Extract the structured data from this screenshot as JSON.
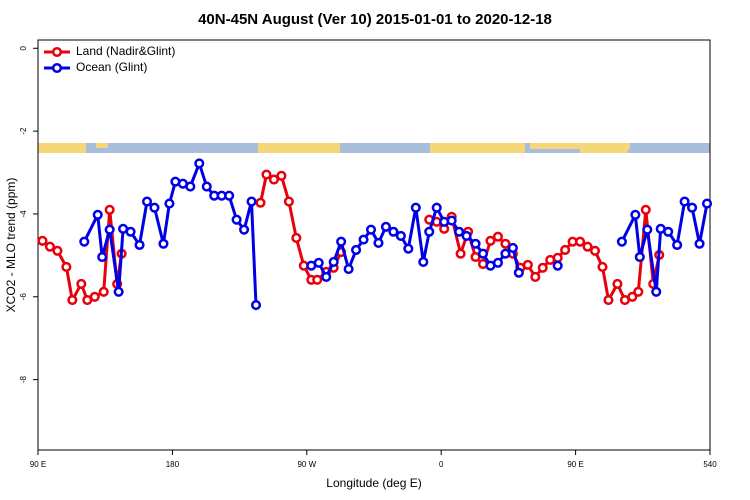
{
  "chart_data": {
    "type": "line",
    "title": "40N-45N August (Ver 10)   2015-01-01 to 2020-12-18",
    "x_label": "Longitude (deg E)",
    "y_label": "XCO2 - MLO trend (ppm)",
    "xlim": [
      90,
      540
    ],
    "ylim": [
      -9.7,
      0.2
    ],
    "xticks": [
      {
        "value": 90,
        "label": "90 E"
      },
      180,
      {
        "value": 270,
        "label": "90 W"
      },
      {
        "value": 360,
        "label": "0"
      },
      {
        "value": 450,
        "label": "90 E"
      },
      540
    ],
    "yticks": [
      0,
      -2,
      -4,
      -6,
      -8
    ],
    "legend": "top-left",
    "series": [
      {
        "name": "Land (Nadir&Glint)",
        "color": "#e8000b",
        "x": [
          93,
          98,
          103,
          109,
          113,
          119,
          123,
          128,
          134,
          138,
          143,
          146,
          null,
          239,
          243,
          248,
          253,
          258,
          263,
          268,
          273,
          277,
          283,
          288,
          293,
          null,
          352,
          357,
          362,
          367,
          373,
          378,
          383,
          388,
          393,
          398,
          403,
          408,
          413,
          418,
          423,
          428,
          433,
          438,
          443,
          448,
          453,
          458,
          463,
          468,
          472,
          478,
          483,
          488,
          492,
          497,
          502,
          506
        ],
        "values": [
          -4.65,
          -4.79,
          -4.89,
          -5.28,
          -6.08,
          -5.69,
          -6.08,
          -6.0,
          -5.88,
          -3.9,
          -5.69,
          -4.96,
          null,
          -3.73,
          -3.05,
          -3.17,
          -3.08,
          -3.7,
          -4.58,
          -5.25,
          -5.59,
          -5.59,
          -5.4,
          -5.3,
          -4.92,
          null,
          -4.14,
          -4.19,
          -4.36,
          -4.07,
          -4.96,
          -4.43,
          -5.04,
          -5.21,
          -4.65,
          -4.55,
          -4.72,
          -4.96,
          -5.3,
          -5.23,
          -5.52,
          -5.3,
          -5.11,
          -5.06,
          -4.87,
          -4.67,
          -4.67,
          -4.79,
          -4.89,
          -5.28,
          -6.08,
          -5.69,
          -6.08,
          -6.0,
          -5.88,
          -3.9,
          -5.69,
          -4.99
        ]
      },
      {
        "name": "Ocean (Glint)",
        "color": "#0000e6",
        "x": [
          121,
          130,
          133,
          138,
          144,
          147,
          152,
          158,
          163,
          168,
          174,
          178,
          182,
          187,
          192,
          198,
          203,
          208,
          213,
          218,
          223,
          228,
          233,
          236,
          null,
          273,
          278,
          283,
          288,
          293,
          298,
          303,
          308,
          313,
          318,
          323,
          328,
          333,
          338,
          343,
          348,
          352,
          357,
          362,
          367,
          372,
          377,
          383,
          388,
          393,
          398,
          403,
          408,
          412,
          null,
          438,
          null,
          481,
          490,
          493,
          498,
          504,
          507,
          512,
          518,
          523,
          528,
          533,
          538
        ],
        "values": [
          -4.67,
          -4.02,
          -5.04,
          -4.38,
          -5.88,
          -4.36,
          -4.43,
          -4.75,
          -3.7,
          -3.85,
          -4.72,
          -3.75,
          -3.22,
          -3.27,
          -3.34,
          -2.78,
          -3.34,
          -3.56,
          -3.56,
          -3.56,
          -4.14,
          -4.38,
          -3.7,
          -6.2,
          null,
          -5.25,
          -5.18,
          -5.52,
          -5.16,
          -4.67,
          -5.33,
          -4.87,
          -4.62,
          -4.38,
          -4.7,
          -4.31,
          -4.43,
          -4.53,
          -4.84,
          -3.85,
          -5.16,
          -4.43,
          -3.85,
          -4.19,
          -4.16,
          -4.43,
          -4.53,
          -4.72,
          -4.96,
          -5.25,
          -5.18,
          -4.96,
          -4.82,
          -5.42,
          null,
          -5.25,
          null,
          -4.67,
          -4.02,
          -5.04,
          -4.38,
          -5.88,
          -4.36,
          -4.43,
          -4.75,
          -3.7,
          -3.85,
          -4.72,
          -3.75
        ]
      }
    ]
  }
}
